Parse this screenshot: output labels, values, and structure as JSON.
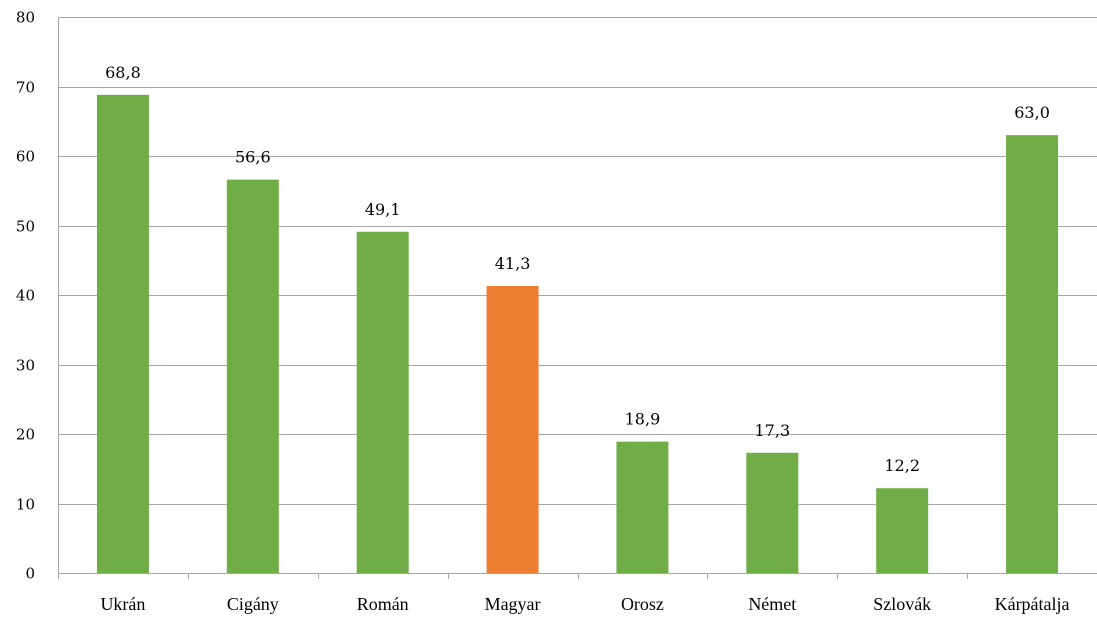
{
  "chart_data": {
    "type": "bar",
    "categories": [
      "Ukrán",
      "Cigány",
      "Román",
      "Magyar",
      "Orosz",
      "Német",
      "Szlovák",
      "Kárpátalja"
    ],
    "values": [
      68.8,
      56.6,
      49.1,
      41.3,
      18.9,
      17.3,
      12.2,
      63.0
    ],
    "value_labels": [
      "68,8",
      "56,6",
      "49,1",
      "41,3",
      "18,9",
      "17,3",
      "12,2",
      "63,0"
    ],
    "title": "",
    "xlabel": "",
    "ylabel": "",
    "ylim": [
      0,
      80
    ],
    "yticks": [
      0,
      10,
      20,
      30,
      40,
      50,
      60,
      70,
      80
    ],
    "grid": true,
    "legend": "none",
    "colors": {
      "default": "#70ad47",
      "highlight": "#ed7d31",
      "highlight_category": "Magyar"
    }
  }
}
